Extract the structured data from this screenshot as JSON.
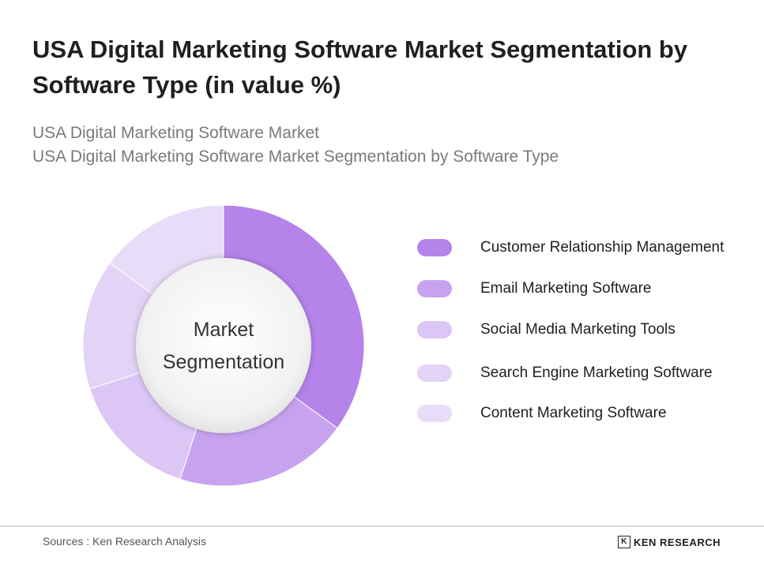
{
  "header": {
    "title": "USA Digital Marketing Software Market Segmentation by Software Type (in value %)",
    "subtitle_1": "USA Digital Marketing Software Market",
    "subtitle_2": "USA Digital Marketing Software Market Segmentation by Software Type"
  },
  "chart_data": {
    "type": "pie",
    "donut": true,
    "center_label_1": "Market",
    "center_label_2": "Segmentation",
    "legend_placement": "right",
    "categories": [
      "Customer Relationship Management",
      "Email Marketing Software",
      "Social Media Marketing Tools",
      "Search Engine Marketing Software",
      "Content Marketing Software"
    ],
    "values": [
      35,
      20,
      15,
      15,
      15
    ],
    "colors": [
      "#b583ea",
      "#c7a3ef",
      "#dcc6f5",
      "#e3d3f6",
      "#e8ddf8"
    ]
  },
  "footer": {
    "source": "Sources : Ken Research Analysis",
    "brand_mark": "K",
    "brand": "KEN RESEARCH"
  }
}
